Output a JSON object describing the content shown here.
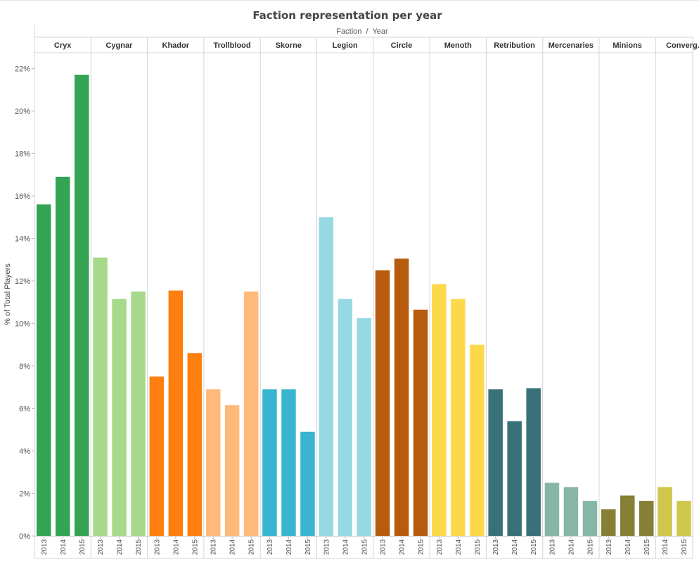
{
  "chart_data": {
    "type": "bar",
    "title": "Faction representation per year",
    "header": "Faction  /  Year",
    "ylabel": "% of Total Players",
    "ylim": [
      0,
      23
    ],
    "yticks": [
      "0%",
      "2%",
      "4%",
      "6%",
      "8%",
      "10%",
      "12%",
      "14%",
      "16%",
      "18%",
      "20%",
      "22%"
    ],
    "groups": [
      {
        "name": "Cryx",
        "color": "#34a353",
        "years": [
          "2013",
          "2014",
          "2015"
        ],
        "values": [
          15.6,
          16.9,
          21.7
        ]
      },
      {
        "name": "Cygnar",
        "color": "#a7d98a",
        "years": [
          "2013",
          "2014",
          "2015"
        ],
        "values": [
          13.1,
          11.15,
          11.5
        ]
      },
      {
        "name": "Khador",
        "color": "#fe7f10",
        "years": [
          "2013",
          "2014",
          "2015"
        ],
        "values": [
          7.5,
          11.55,
          8.6
        ]
      },
      {
        "name": "Trollblood",
        "color": "#feb97b",
        "years": [
          "2013",
          "2014",
          "2015"
        ],
        "values": [
          6.9,
          6.15,
          11.5
        ]
      },
      {
        "name": "Skorne",
        "color": "#3ab5cf",
        "years": [
          "2013",
          "2014",
          "2015"
        ],
        "values": [
          6.9,
          6.9,
          4.9
        ]
      },
      {
        "name": "Legion",
        "color": "#96d9e3",
        "years": [
          "2013",
          "2014",
          "2015"
        ],
        "values": [
          15.0,
          11.15,
          10.25
        ]
      },
      {
        "name": "Circle",
        "color": "#b75c0f",
        "years": [
          "2013",
          "2014",
          "2015"
        ],
        "values": [
          12.5,
          13.05,
          10.65
        ]
      },
      {
        "name": "Menoth",
        "color": "#fdd84b",
        "years": [
          "2013",
          "2014",
          "2015"
        ],
        "values": [
          11.85,
          11.15,
          9.0
        ]
      },
      {
        "name": "Retribution",
        "color": "#387178",
        "years": [
          "2013",
          "2014",
          "2015"
        ],
        "values": [
          6.9,
          5.4,
          6.95
        ]
      },
      {
        "name": "Mercenaries",
        "color": "#86b6a5",
        "years": [
          "2013",
          "2014",
          "2015"
        ],
        "values": [
          2.5,
          2.3,
          1.65
        ]
      },
      {
        "name": "Minions",
        "color": "#867f36",
        "years": [
          "2013",
          "2014",
          "2015"
        ],
        "values": [
          1.25,
          1.9,
          1.65
        ]
      },
      {
        "name": "Converg..",
        "color": "#cfc84c",
        "years": [
          "2014",
          "2015"
        ],
        "values": [
          2.3,
          1.65
        ]
      }
    ]
  }
}
